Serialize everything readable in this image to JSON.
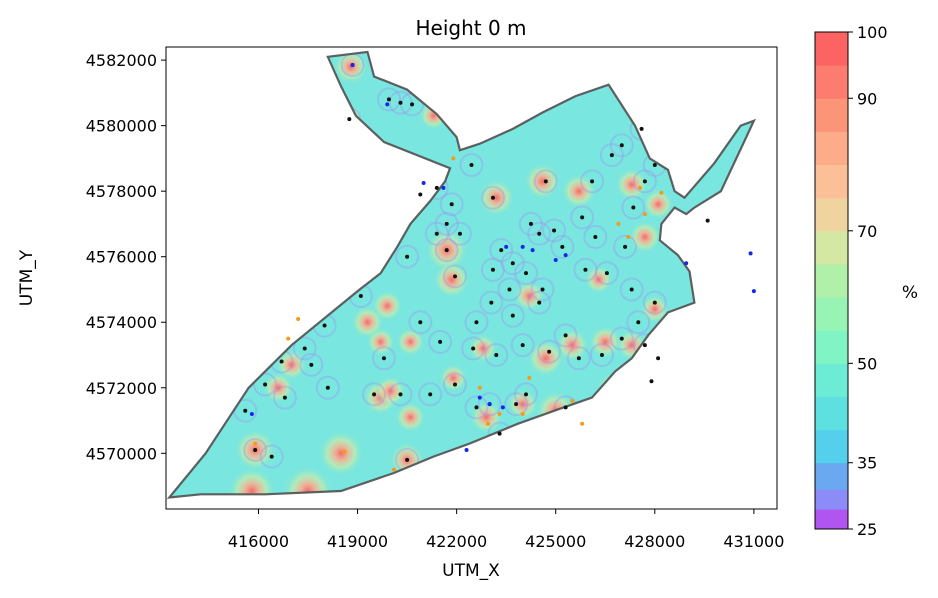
{
  "chart_data": {
    "type": "heatmap",
    "title": "Height 0 m",
    "xlabel": "UTM_X",
    "ylabel": "UTM_Y",
    "xlim": [
      413200,
      431700
    ],
    "ylim": [
      4568300,
      4582400
    ],
    "x_ticks": [
      416000,
      419000,
      422000,
      425000,
      428000,
      431000
    ],
    "x_tick_labels": [
      "416000",
      "419000",
      "422000",
      "425000",
      "428000",
      "431000"
    ],
    "y_ticks": [
      4570000,
      4572000,
      4574000,
      4576000,
      4578000,
      4580000,
      4582000
    ],
    "y_tick_labels": [
      "4570000",
      "4572000",
      "4574000",
      "4576000",
      "4578000",
      "4580000",
      "4582000"
    ],
    "colorbar": {
      "label": "%",
      "range": [
        25,
        100
      ],
      "boundaries": [
        25,
        28,
        31,
        35,
        40,
        45,
        50,
        55,
        60,
        65,
        70,
        75,
        80,
        85,
        90,
        95,
        100
      ],
      "tick_values": [
        25,
        35,
        50,
        70,
        90,
        100
      ],
      "tick_labels": [
        "25",
        "35",
        "50",
        "70",
        "90",
        "100"
      ],
      "colors": [
        "#b055f0",
        "#8c8cf8",
        "#6aa8f0",
        "#55d0ec",
        "#5ee0e0",
        "#6cecd4",
        "#80f4c4",
        "#98f4b4",
        "#b0f0a8",
        "#d4e8a4",
        "#f0d4a0",
        "#fcc098",
        "#fcac88",
        "#fc9478",
        "#fc7c70",
        "#fc6464"
      ]
    },
    "background_value_approx": 47,
    "region_boundary": [
      [
        418100,
        4582100
      ],
      [
        419300,
        4582250
      ],
      [
        419500,
        4581500
      ],
      [
        420500,
        4581100
      ],
      [
        421400,
        4580350
      ],
      [
        422000,
        4579650
      ],
      [
        422100,
        4579250
      ],
      [
        422700,
        4579450
      ],
      [
        423700,
        4579900
      ],
      [
        424600,
        4580400
      ],
      [
        425600,
        4580900
      ],
      [
        426600,
        4581250
      ],
      [
        427400,
        4580000
      ],
      [
        427850,
        4579000
      ],
      [
        428400,
        4578650
      ],
      [
        428600,
        4578000
      ],
      [
        428900,
        4577800
      ],
      [
        429800,
        4578850
      ],
      [
        430600,
        4580000
      ],
      [
        431000,
        4580150
      ],
      [
        430700,
        4579500
      ],
      [
        430000,
        4578000
      ],
      [
        429200,
        4577500
      ],
      [
        428950,
        4577300
      ],
      [
        428600,
        4577500
      ],
      [
        428200,
        4577000
      ],
      [
        428150,
        4576500
      ],
      [
        428700,
        4576050
      ],
      [
        429050,
        4575550
      ],
      [
        429200,
        4574600
      ],
      [
        428400,
        4574300
      ],
      [
        427800,
        4573600
      ],
      [
        427300,
        4572900
      ],
      [
        426800,
        4572500
      ],
      [
        426100,
        4571700
      ],
      [
        425100,
        4571350
      ],
      [
        423850,
        4570900
      ],
      [
        422400,
        4570300
      ],
      [
        421300,
        4569900
      ],
      [
        420100,
        4569400
      ],
      [
        418500,
        4568850
      ],
      [
        416200,
        4568750
      ],
      [
        414250,
        4568750
      ],
      [
        413300,
        4568650
      ],
      [
        414400,
        4570000
      ],
      [
        415700,
        4572000
      ],
      [
        417000,
        4573300
      ],
      [
        419000,
        4574950
      ],
      [
        419700,
        4575500
      ],
      [
        420200,
        4576300
      ],
      [
        420600,
        4577000
      ],
      [
        421200,
        4577700
      ],
      [
        421650,
        4578300
      ],
      [
        421800,
        4578700
      ],
      [
        419800,
        4579500
      ],
      [
        418950,
        4580300
      ],
      [
        418500,
        4581200
      ]
    ],
    "measured_points": [
      [
        418850,
        4581850
      ],
      [
        419950,
        4580800
      ],
      [
        420300,
        4580700
      ],
      [
        420650,
        4580650
      ],
      [
        418750,
        4580200
      ],
      [
        420900,
        4577900
      ],
      [
        421400,
        4578100
      ],
      [
        421850,
        4577600
      ],
      [
        422450,
        4578800
      ],
      [
        423100,
        4577800
      ],
      [
        424700,
        4578300
      ],
      [
        426100,
        4578300
      ],
      [
        421700,
        4577000
      ],
      [
        422100,
        4576700
      ],
      [
        421700,
        4576200
      ],
      [
        421950,
        4575400
      ],
      [
        423100,
        4575600
      ],
      [
        423350,
        4576200
      ],
      [
        423700,
        4575800
      ],
      [
        424100,
        4575500
      ],
      [
        424600,
        4575000
      ],
      [
        423600,
        4575000
      ],
      [
        423050,
        4574600
      ],
      [
        422600,
        4574000
      ],
      [
        423700,
        4574200
      ],
      [
        424000,
        4573300
      ],
      [
        424800,
        4573100
      ],
      [
        422500,
        4573200
      ],
      [
        423200,
        4573000
      ],
      [
        424250,
        4577000
      ],
      [
        424500,
        4576700
      ],
      [
        425200,
        4576300
      ],
      [
        425800,
        4577200
      ],
      [
        426200,
        4576600
      ],
      [
        425900,
        4575600
      ],
      [
        426550,
        4575500
      ],
      [
        427100,
        4576300
      ],
      [
        427350,
        4577500
      ],
      [
        427700,
        4578300
      ],
      [
        428000,
        4578800
      ],
      [
        426700,
        4579100
      ],
      [
        427000,
        4579400
      ],
      [
        427600,
        4579900
      ],
      [
        427300,
        4575000
      ],
      [
        428000,
        4574600
      ],
      [
        427500,
        4574000
      ],
      [
        427000,
        4573500
      ],
      [
        427700,
        4573300
      ],
      [
        428100,
        4572900
      ],
      [
        426400,
        4573000
      ],
      [
        425700,
        4572900
      ],
      [
        425300,
        4573600
      ],
      [
        419100,
        4574800
      ],
      [
        418000,
        4573900
      ],
      [
        417400,
        4573200
      ],
      [
        416700,
        4572800
      ],
      [
        416200,
        4572100
      ],
      [
        415600,
        4571300
      ],
      [
        415900,
        4570100
      ],
      [
        416400,
        4569900
      ],
      [
        416800,
        4571700
      ],
      [
        417600,
        4572700
      ],
      [
        418100,
        4572000
      ],
      [
        419500,
        4571800
      ],
      [
        420300,
        4571800
      ],
      [
        421200,
        4571800
      ],
      [
        420500,
        4569800
      ],
      [
        421950,
        4572100
      ],
      [
        422600,
        4571400
      ],
      [
        423000,
        4571500
      ],
      [
        423800,
        4571500
      ],
      [
        424100,
        4571800
      ],
      [
        425300,
        4571400
      ],
      [
        421500,
        4573400
      ],
      [
        419800,
        4572900
      ],
      [
        420900,
        4574000
      ],
      [
        421400,
        4576700
      ],
      [
        420500,
        4576000
      ],
      [
        423300,
        4570600
      ],
      [
        424500,
        4574600
      ],
      [
        424950,
        4576800
      ],
      [
        427900,
        4572200
      ],
      [
        429600,
        4577100
      ]
    ],
    "blue_points": [
      [
        418850,
        4581850
      ],
      [
        419900,
        4580650
      ],
      [
        421000,
        4578250
      ],
      [
        421600,
        4578100
      ],
      [
        423500,
        4576300
      ],
      [
        424000,
        4576300
      ],
      [
        424300,
        4576200
      ],
      [
        425000,
        4575900
      ],
      [
        425300,
        4576050
      ],
      [
        422700,
        4571700
      ],
      [
        423000,
        4571500
      ],
      [
        423400,
        4571400
      ],
      [
        415800,
        4571200
      ],
      [
        422300,
        4570100
      ],
      [
        428950,
        4575800
      ],
      [
        430900,
        4576100
      ],
      [
        431000,
        4574950
      ]
    ],
    "orange_points": [
      [
        421900,
        4579000
      ],
      [
        427550,
        4578100
      ],
      [
        427700,
        4577300
      ],
      [
        428200,
        4577950
      ],
      [
        426900,
        4577000
      ],
      [
        422700,
        4572000
      ],
      [
        423300,
        4571200
      ],
      [
        424000,
        4571200
      ],
      [
        425500,
        4571600
      ],
      [
        415900,
        4570300
      ],
      [
        418600,
        4570050
      ],
      [
        420100,
        4569500
      ],
      [
        416900,
        4573500
      ],
      [
        417200,
        4574100
      ],
      [
        425800,
        4570900
      ],
      [
        424200,
        4572300
      ],
      [
        427200,
        4576600
      ],
      [
        422950,
        4570900
      ]
    ],
    "hotspots": [
      [
        418800,
        4581800,
        78
      ],
      [
        418750,
        4580200,
        72
      ],
      [
        421700,
        4576200,
        85
      ],
      [
        421850,
        4575300,
        80
      ],
      [
        420600,
        4573400,
        72
      ],
      [
        419900,
        4574500,
        74
      ],
      [
        419700,
        4573400,
        72
      ],
      [
        419300,
        4574000,
        76
      ],
      [
        420600,
        4571100,
        74
      ],
      [
        419700,
        4571700,
        78
      ],
      [
        420000,
        4571900,
        74
      ],
      [
        418500,
        4570000,
        88
      ],
      [
        417500,
        4568850,
        92
      ],
      [
        415800,
        4568850,
        90
      ],
      [
        415900,
        4570100,
        84
      ],
      [
        420500,
        4569800,
        78
      ],
      [
        421900,
        4572300,
        72
      ],
      [
        422800,
        4573200,
        72
      ],
      [
        424700,
        4572900,
        80
      ],
      [
        425500,
        4573300,
        76
      ],
      [
        426500,
        4573400,
        76
      ],
      [
        427300,
        4573300,
        74
      ],
      [
        428000,
        4574400,
        72
      ],
      [
        425700,
        4578000,
        78
      ],
      [
        424600,
        4578300,
        80
      ],
      [
        423200,
        4577800,
        80
      ],
      [
        427300,
        4578200,
        76
      ],
      [
        428100,
        4577600,
        74
      ],
      [
        427700,
        4576600,
        76
      ],
      [
        424200,
        4574800,
        74
      ],
      [
        426300,
        4575300,
        72
      ],
      [
        425000,
        4571300,
        82
      ],
      [
        424000,
        4571500,
        74
      ],
      [
        422900,
        4571100,
        76
      ],
      [
        417000,
        4572700,
        74
      ],
      [
        416600,
        4572000,
        74
      ],
      [
        426700,
        4572000,
        72
      ],
      [
        420000,
        4577700,
        70
      ],
      [
        421300,
        4580300,
        72
      ]
    ]
  }
}
